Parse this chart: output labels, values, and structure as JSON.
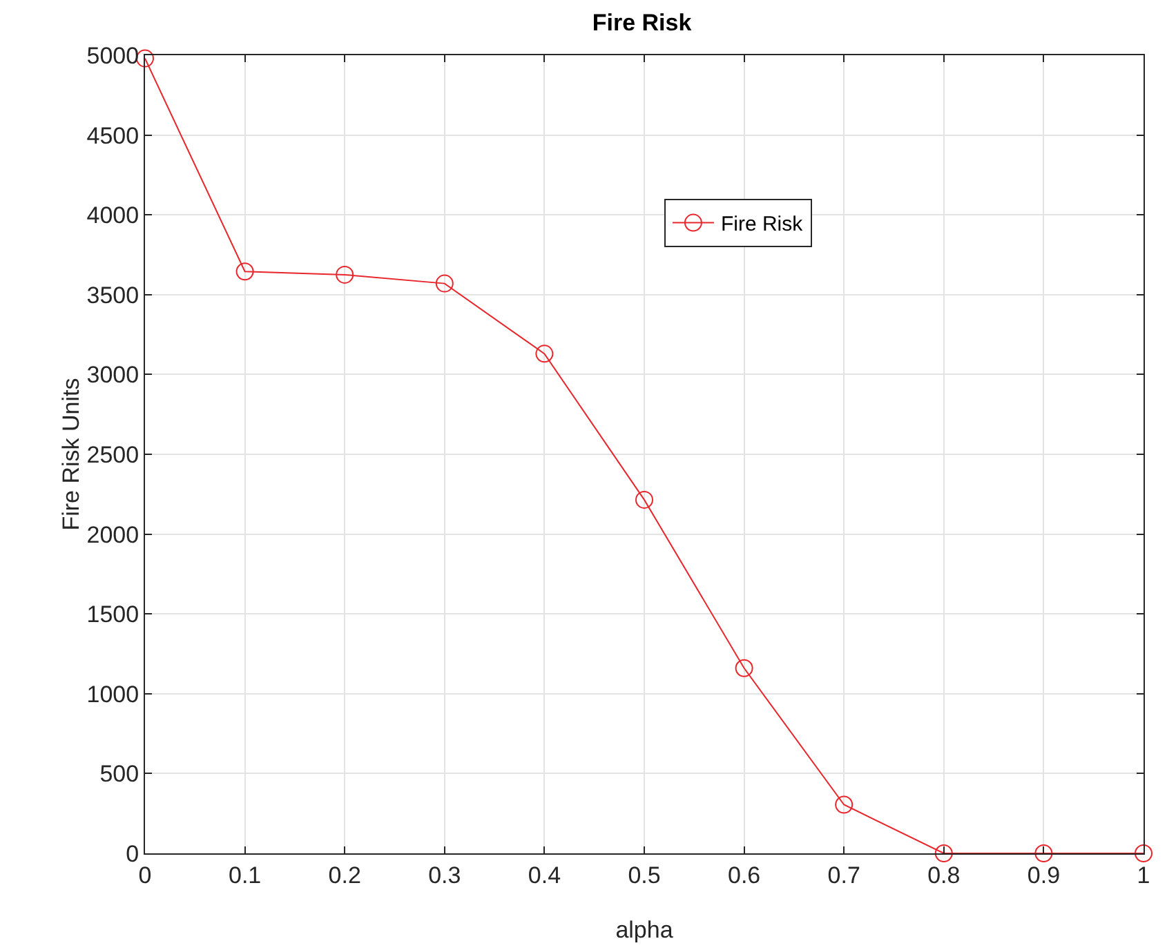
{
  "chart_data": {
    "type": "line",
    "title": "Fire Risk",
    "xlabel": "alpha",
    "ylabel": "Fire Risk Units",
    "x": [
      0,
      0.1,
      0.2,
      0.3,
      0.4,
      0.5,
      0.6,
      0.7,
      0.8,
      0.9,
      1
    ],
    "series": [
      {
        "name": "Fire Risk",
        "color": "#e8262b",
        "values": [
          4980,
          3645,
          3625,
          3570,
          3130,
          2215,
          1160,
          305,
          0,
          0,
          0
        ]
      }
    ],
    "xlim": [
      0,
      1
    ],
    "xticks": [
      0,
      0.1,
      0.2,
      0.3,
      0.4,
      0.5,
      0.6,
      0.7,
      0.8,
      0.9,
      1
    ],
    "ylim": [
      0,
      5000
    ],
    "yticks": [
      0,
      500,
      1000,
      1500,
      2000,
      2500,
      3000,
      3500,
      4000,
      4500,
      5000
    ],
    "grid": true,
    "legend": "top",
    "marker": "circle",
    "line_style": "solid"
  }
}
